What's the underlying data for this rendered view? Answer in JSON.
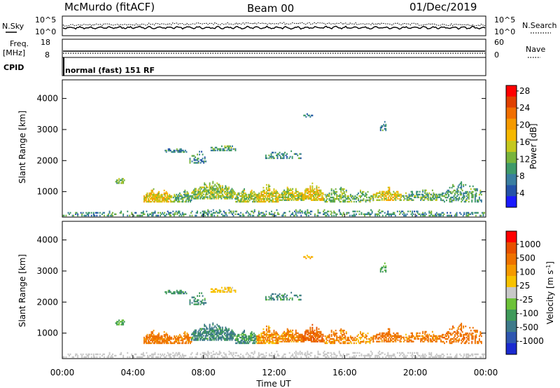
{
  "header": {
    "title": "McMurdo (fitACF)",
    "beam": "Beam 00",
    "date": "01/Dec/2019"
  },
  "left_labels": {
    "nsky": "N.Sky",
    "freq": "Freq.",
    "mhz": "[MHz]",
    "cpid": "CPID"
  },
  "right_labels": {
    "nsearch": "N.Search",
    "nave": "Nave"
  },
  "cpid_text": "normal (fast) 151 RF",
  "chart_data": [
    {
      "name": "noise-panel",
      "type": "line",
      "y_ticks_left": [
        "10^5",
        "10^0"
      ],
      "y_ticks_right": [
        "10^5",
        "10^0"
      ]
    },
    {
      "name": "freq-panel",
      "type": "line",
      "y_ticks_left": [
        "18",
        "8"
      ],
      "y_ticks_right": [
        "60",
        "0"
      ],
      "freq_mhz": 10,
      "nave": 8
    },
    {
      "name": "power-panel",
      "type": "heatmap",
      "ylabel": "Slant Range [km]",
      "y_ticks": [
        1000,
        2000,
        3000,
        4000
      ],
      "ylim": [
        180,
        4600
      ],
      "xlim_hours": [
        0,
        24
      ],
      "colorbar_label": "Power [dB]",
      "colorbar_ticks": [
        4,
        8,
        12,
        16,
        20,
        24,
        28
      ],
      "colorbar_colors": [
        "#1a1aff",
        "#2452a8",
        "#3a7ea0",
        "#3f9a6a",
        "#78b43c",
        "#c4c81e",
        "#f5b800",
        "#f59a00",
        "#f06e00",
        "#e04000",
        "#ff0000"
      ]
    },
    {
      "name": "velocity-panel",
      "type": "heatmap",
      "ylabel": "Slant Range [km]",
      "y_ticks": [
        1000,
        2000,
        3000,
        4000
      ],
      "ylim": [
        180,
        4600
      ],
      "xlim_hours": [
        0,
        24
      ],
      "colorbar_label": "Velocity [m s",
      "colorbar_label_sup": "-1",
      "colorbar_label_end": "]",
      "colorbar_ticks": [
        "1000",
        "500",
        "100",
        "25",
        "-25",
        "-100",
        "-500",
        "-1000"
      ],
      "colorbar_colors": [
        "#1a2ad0",
        "#2e56b0",
        "#3e7a8a",
        "#3f9a5a",
        "#6cc238",
        "#c8c8c8",
        "#f7c200",
        "#f59a00",
        "#ee7200",
        "#e85000",
        "#ff0000"
      ]
    }
  ],
  "x_axis": {
    "label": "Time UT",
    "ticks": [
      "00:00",
      "04:00",
      "08:00",
      "12:00",
      "16:00",
      "20:00",
      "00:00"
    ]
  },
  "echo_regions": [
    {
      "t0": 0.0,
      "t1": 24.0,
      "r0": 200,
      "r1": 420,
      "density": 0.35,
      "p": 9,
      "v": 10
    },
    {
      "t0": 3.0,
      "t1": 3.5,
      "r0": 1250,
      "r1": 1450,
      "density": 0.6,
      "p": 12,
      "v": 60
    },
    {
      "t0": 4.6,
      "t1": 6.2,
      "r0": 650,
      "r1": 1100,
      "density": 0.75,
      "p": 17,
      "v": -150
    },
    {
      "t0": 6.2,
      "t1": 7.3,
      "r0": 650,
      "r1": 1050,
      "density": 0.7,
      "p": 11,
      "v": -120
    },
    {
      "t0": 7.3,
      "t1": 9.8,
      "r0": 750,
      "r1": 1350,
      "density": 0.7,
      "p": 13,
      "v": 120
    },
    {
      "t0": 9.8,
      "t1": 11.0,
      "r0": 650,
      "r1": 1150,
      "density": 0.65,
      "p": 13,
      "v": 90
    },
    {
      "t0": 11.0,
      "t1": 12.3,
      "r0": 650,
      "r1": 1250,
      "density": 0.75,
      "p": 16,
      "v": -90
    },
    {
      "t0": 12.3,
      "t1": 13.6,
      "r0": 700,
      "r1": 1200,
      "density": 0.7,
      "p": 14,
      "v": -110
    },
    {
      "t0": 13.6,
      "t1": 14.8,
      "r0": 700,
      "r1": 1300,
      "density": 0.7,
      "p": 17,
      "v": -260
    },
    {
      "t0": 14.8,
      "t1": 16.5,
      "r0": 650,
      "r1": 1150,
      "density": 0.55,
      "p": 12,
      "v": -120
    },
    {
      "t0": 16.5,
      "t1": 17.6,
      "r0": 650,
      "r1": 1050,
      "density": 0.45,
      "p": 11,
      "v": -80
    },
    {
      "t0": 17.6,
      "t1": 19.2,
      "r0": 700,
      "r1": 1150,
      "density": 0.65,
      "p": 16,
      "v": -160
    },
    {
      "t0": 19.2,
      "t1": 21.5,
      "r0": 700,
      "r1": 1100,
      "density": 0.45,
      "p": 11,
      "v": -140
    },
    {
      "t0": 21.5,
      "t1": 23.8,
      "r0": 650,
      "r1": 1350,
      "density": 0.4,
      "p": 10,
      "v": -200
    },
    {
      "t0": 5.8,
      "t1": 7.0,
      "r0": 2250,
      "r1": 2400,
      "density": 0.5,
      "p": 8,
      "v": 80
    },
    {
      "t0": 8.4,
      "t1": 9.8,
      "r0": 2300,
      "r1": 2550,
      "density": 0.55,
      "p": 10,
      "v": -40
    },
    {
      "t0": 7.2,
      "t1": 8.2,
      "r0": 1900,
      "r1": 2300,
      "density": 0.35,
      "p": 8,
      "v": 110
    },
    {
      "t0": 11.5,
      "t1": 13.5,
      "r0": 2050,
      "r1": 2350,
      "density": 0.3,
      "p": 8,
      "v": 100
    },
    {
      "t0": 13.6,
      "t1": 14.2,
      "r0": 3380,
      "r1": 3520,
      "density": 0.5,
      "p": 8,
      "v": -60
    },
    {
      "t0": 18.0,
      "t1": 18.4,
      "r0": 2950,
      "r1": 3250,
      "density": 0.35,
      "p": 8,
      "v": 60
    }
  ]
}
